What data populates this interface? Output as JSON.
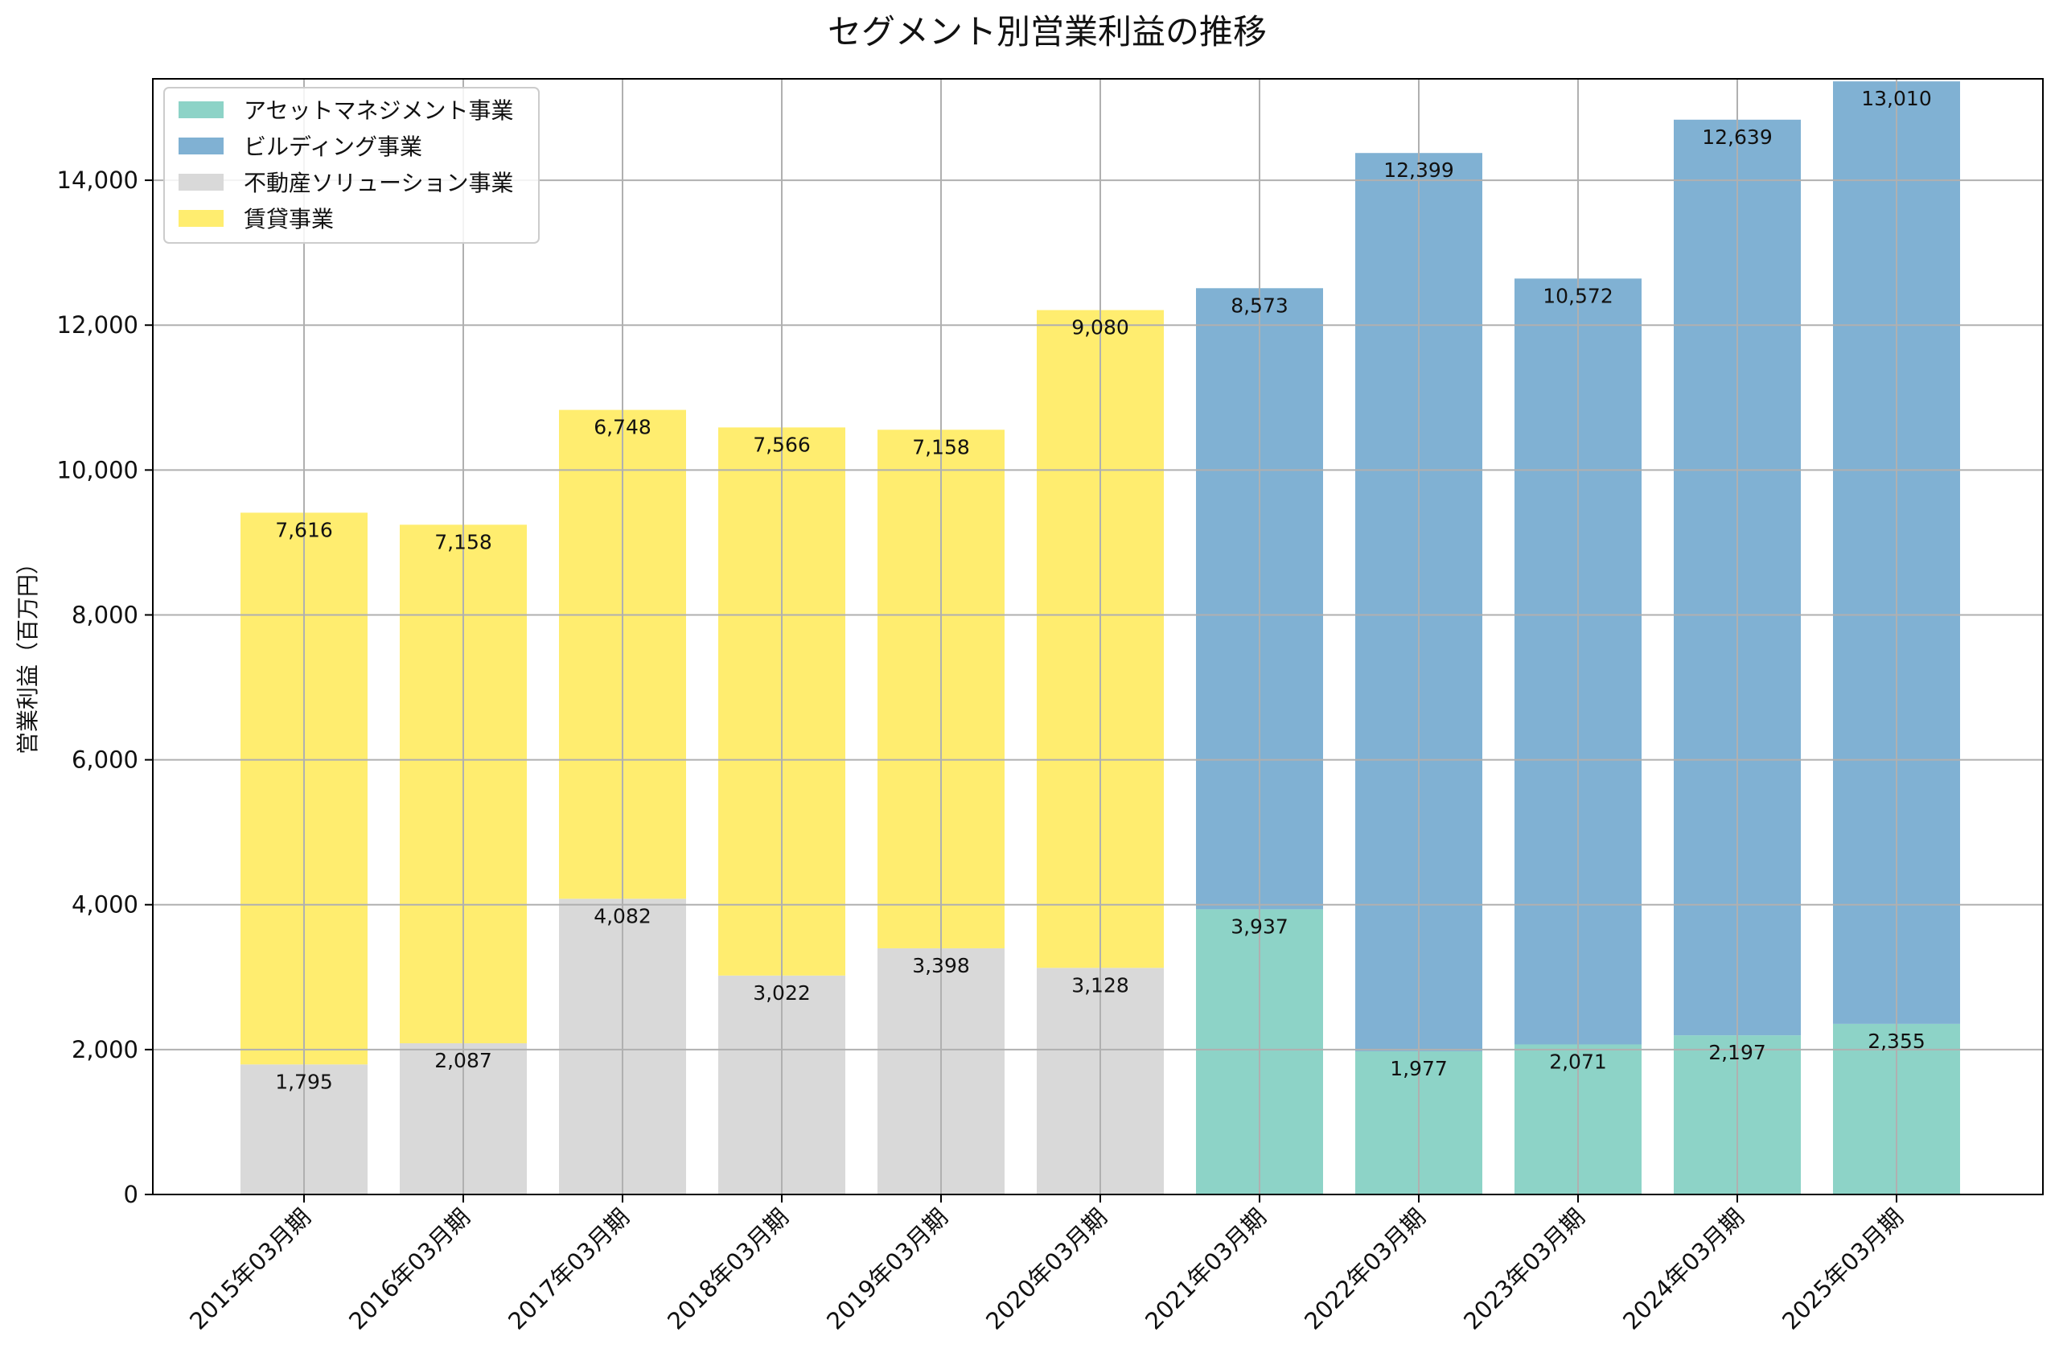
{
  "chart_data": {
    "type": "bar",
    "stacked": true,
    "title": "セグメント別営業利益の推移",
    "xlabel": "",
    "ylabel": "営業利益（百万円）",
    "ylim": [
      0,
      15400
    ],
    "yticks": [
      0,
      2000,
      4000,
      6000,
      8000,
      10000,
      12000,
      14000
    ],
    "ytick_labels": [
      "0",
      "2,000",
      "4,000",
      "6,000",
      "8,000",
      "10,000",
      "12,000",
      "14,000"
    ],
    "grid": true,
    "legend_position": "top-left",
    "categories": [
      "2015年03月期",
      "2016年03月期",
      "2017年03月期",
      "2018年03月期",
      "2019年03月期",
      "2020年03月期",
      "2021年03月期",
      "2022年03月期",
      "2023年03月期",
      "2024年03月期",
      "2025年03月期"
    ],
    "series": [
      {
        "name": "アセットマネジメント事業",
        "color": "#8dd3c7",
        "values": [
          0,
          0,
          0,
          0,
          0,
          0,
          3937,
          1977,
          2071,
          2197,
          2355
        ],
        "labels": [
          "",
          "",
          "",
          "",
          "",
          "",
          "3,937",
          "1,977",
          "2,071",
          "2,197",
          "2,355"
        ]
      },
      {
        "name": "ビルディング事業",
        "color": "#80b1d3",
        "values": [
          0,
          0,
          0,
          0,
          0,
          0,
          8573,
          12399,
          10572,
          12639,
          13010
        ],
        "labels": [
          "",
          "",
          "",
          "",
          "",
          "",
          "8,573",
          "12,399",
          "10,572",
          "12,639",
          "13,010"
        ]
      },
      {
        "name": "不動産ソリューション事業",
        "color": "#d9d9d9",
        "values": [
          1795,
          2087,
          4082,
          3022,
          3398,
          3128,
          0,
          0,
          0,
          0,
          0
        ],
        "labels": [
          "1,795",
          "2,087",
          "4,082",
          "3,022",
          "3,398",
          "3,128",
          "",
          "",
          "",
          "",
          ""
        ]
      },
      {
        "name": "賃貸事業",
        "color": "#ffed6f",
        "values": [
          7616,
          7158,
          6748,
          7566,
          7158,
          9080,
          0,
          0,
          0,
          0,
          0
        ],
        "labels": [
          "7,616",
          "7,158",
          "6,748",
          "7,566",
          "7,158",
          "9,080",
          "",
          "",
          "",
          "",
          ""
        ]
      }
    ]
  }
}
